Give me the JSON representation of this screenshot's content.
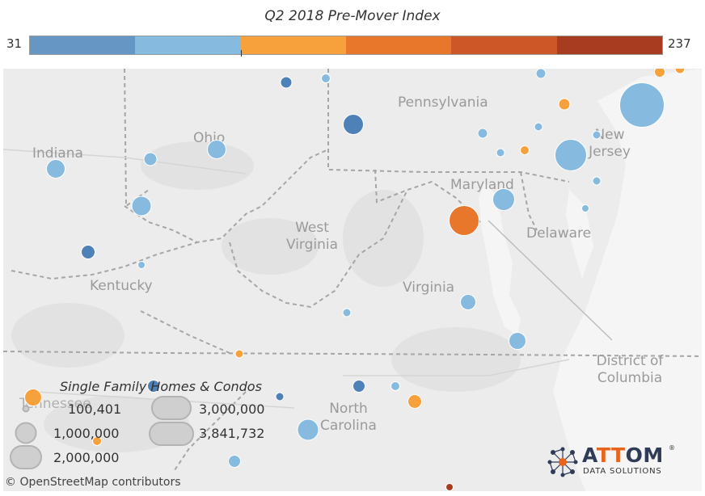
{
  "title": "Q2 2018 Pre-Mover Index",
  "color_scale": {
    "min_label": "31",
    "max_label": "237",
    "segments": [
      "#6596c4",
      "#86bade",
      "#f7a13c",
      "#e9772b",
      "#ce5727",
      "#a83c20"
    ]
  },
  "colors": {
    "low_dark_blue": "#4e81b8",
    "low_light_blue": "#86bade",
    "mid_orange": "#f7a13c",
    "high_orange": "#e9772b",
    "highest_red": "#a83c20"
  },
  "map_labels": {
    "pennsylvania": "Pennsylvania",
    "ohio": "Ohio",
    "indiana": "Indiana",
    "new_jersey": "New Jersey",
    "maryland": "Maryland",
    "delaware": "Delaware",
    "west_virginia": "West Virginia",
    "kentucky": "Kentucky",
    "virginia": "Virginia",
    "district_of_columbia": "District of Columbia",
    "tennessee": "Tennessee",
    "north_carolina": "North Carolina"
  },
  "legend": {
    "title": "Single Family Homes & Condos",
    "items": [
      "100,401",
      "1,000,000",
      "2,000,000",
      "3,000,000",
      "3,841,732"
    ]
  },
  "attribution": "© OpenStreetMap contributors",
  "logo": {
    "text_before": "A",
    "text_accent": "TT",
    "text_after": "OM",
    "sub": "DATA SOLUTIONS",
    "reg": "®"
  }
}
